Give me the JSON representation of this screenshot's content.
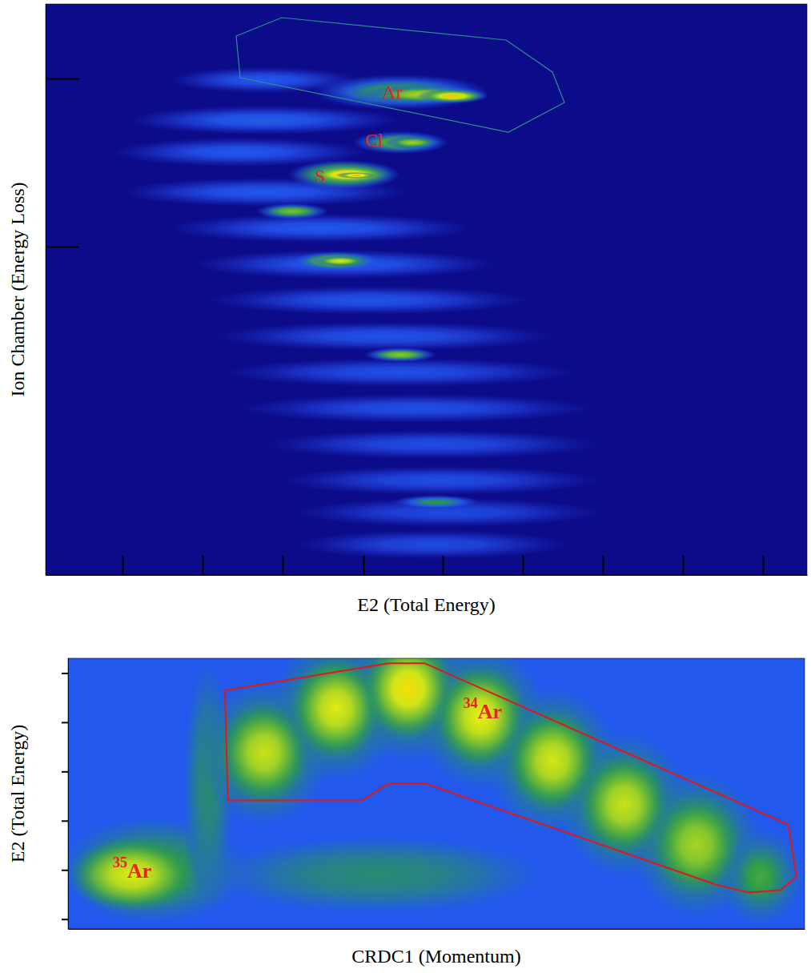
{
  "chart_data": [
    {
      "type": "density",
      "xlabel": "E2 (Total Energy)",
      "ylabel": "Ion Chamber (Energy Loss)",
      "xlim": [
        0,
        951
      ],
      "ylim": [
        0,
        713
      ],
      "xticks": [
        96,
        196,
        296,
        397,
        496,
        596,
        696,
        796,
        896
      ],
      "yticks": [
        410,
        620
      ],
      "tick_labels": false,
      "background": 0,
      "clusters": {
        "x": [
          273,
          273,
          243,
          273,
          343,
          373,
          403,
          423,
          443,
          463,
          483,
          493,
          503,
          483,
          443,
          473,
          508,
          443,
          458,
          373,
          378,
          388,
          308,
          363,
          368,
          443,
          488
        ],
        "y": [
          618,
          568,
          528,
          478,
          433,
          388,
          343,
          298,
          253,
          208,
          163,
          118,
          78,
          38,
          603,
          600,
          598,
          540,
          540,
          500,
          500,
          499,
          454,
          392,
          392,
          275,
          91
        ],
        "x_spread": [
          120,
          170,
          160,
          180,
          190,
          190,
          200,
          210,
          220,
          220,
          210,
          200,
          190,
          170,
          110,
          80,
          45,
          60,
          35,
          70,
          55,
          25,
          45,
          55,
          35,
          45,
          55
        ],
        "y_spread": [
          16,
          18,
          18,
          18,
          18,
          18,
          18,
          18,
          18,
          18,
          18,
          18,
          18,
          18,
          22,
          12,
          9,
          14,
          8,
          18,
          12,
          4,
          10,
          12,
          7,
          9,
          9
        ],
        "intensity": [
          0.3,
          0.32,
          0.3,
          0.3,
          0.3,
          0.3,
          0.28,
          0.28,
          0.27,
          0.27,
          0.26,
          0.26,
          0.25,
          0.25,
          0.55,
          0.75,
          0.92,
          0.65,
          0.72,
          0.85,
          0.95,
          1.0,
          0.65,
          0.75,
          0.82,
          0.68,
          0.5
        ]
      },
      "gate": {
        "x": [
          238,
          295,
          575,
          633,
          648,
          578,
          243
        ],
        "y": [
          673,
          696,
          668,
          628,
          590,
          553,
          621
        ],
        "color": "#2f8f8f"
      },
      "annotations": [
        {
          "text": "Ar",
          "x": 433,
          "y": 601,
          "color": "#e3261e"
        },
        {
          "text": "Cl",
          "x": 410,
          "y": 541,
          "color": "#e3261e"
        },
        {
          "text": "S",
          "x": 343,
          "y": 496,
          "color": "#e3261e"
        }
      ]
    },
    {
      "type": "density",
      "xlabel": "CRDC1 (Momentum)",
      "ylabel": "E2 (Total Energy)",
      "xlim": [
        0,
        100
      ],
      "ylim": [
        -0.2,
        5.3
      ],
      "xticks": [],
      "yticks": [
        0,
        1,
        2,
        3,
        4,
        5
      ],
      "tick_labels": false,
      "background": 0.3,
      "clusters": {
        "x": [
          11.5,
          19.0,
          42,
          26.6,
          36.4,
          46.2,
          56.0,
          65.8,
          75.5,
          85.3,
          94.0,
          8.7,
          26.6,
          36.4,
          46.2,
          56.0,
          65.8,
          75.5,
          85.3,
          94.0
        ],
        "y": [
          1.0,
          2.7,
          0.9,
          3.38,
          4.28,
          4.68,
          4.11,
          3.22,
          2.33,
          1.51,
          0.86,
          0.9,
          3.38,
          4.28,
          4.68,
          4.11,
          3.22,
          2.33,
          1.51,
          0.86
        ],
        "x_spread": [
          13,
          3.5,
          23,
          9,
          9,
          9,
          9,
          9,
          9,
          9,
          6,
          8.5,
          6,
          6,
          6,
          6,
          6,
          6,
          6,
          4
        ],
        "y_spread": [
          1.1,
          2.6,
          0.8,
          1.5,
          1.5,
          1.5,
          1.5,
          1.5,
          1.5,
          1.5,
          1.0,
          0.75,
          1.0,
          1.0,
          1.0,
          1.0,
          1.0,
          1.0,
          1.0,
          0.7
        ],
        "intensity": [
          0.5,
          0.45,
          0.45,
          0.5,
          0.5,
          0.5,
          0.5,
          0.5,
          0.5,
          0.5,
          0.45,
          0.82,
          0.78,
          0.82,
          0.88,
          0.84,
          0.8,
          0.78,
          0.72,
          0.55
        ]
      },
      "gate": {
        "x": [
          21.3,
          43.5,
          48.4,
          97.8,
          98.9,
          96.7,
          92.4,
          88.0,
          48.4,
          43.5,
          39.9,
          21.7
        ],
        "y": [
          4.65,
          5.2,
          5.2,
          1.92,
          0.86,
          0.59,
          0.54,
          0.7,
          2.76,
          2.76,
          2.41,
          2.41
        ],
        "color": "#e01818"
      },
      "annotations": [
        {
          "text": "Ar",
          "superscript": "34",
          "x": 56.3,
          "y": 4.23,
          "color": "#e3261e"
        },
        {
          "text": "Ar",
          "superscript": "35",
          "x": 8.7,
          "y": 0.99,
          "color": "#e3261e"
        }
      ]
    }
  ]
}
